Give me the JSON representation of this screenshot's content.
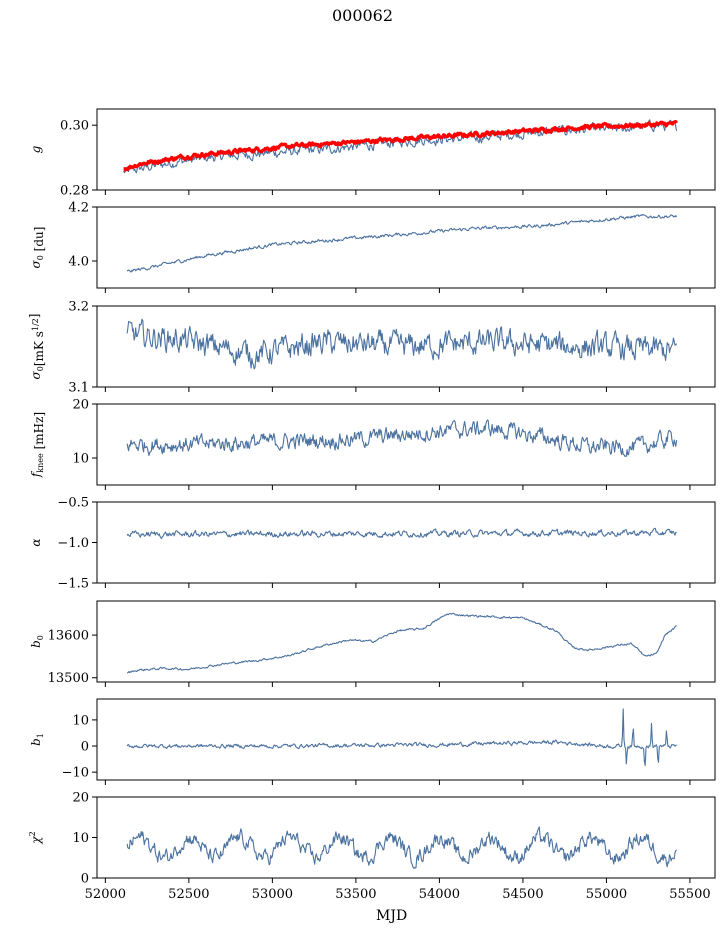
{
  "figure": {
    "title": "000062",
    "xlabel": "MJD",
    "xlim": [
      51950,
      55650
    ],
    "xticks": [
      52000,
      52500,
      53000,
      53500,
      54000,
      54500,
      55000,
      55500
    ],
    "line_color": "#4c72a0",
    "accent_color": "#ff0000"
  },
  "chart_data": [
    {
      "type": "line",
      "ylabel_parts": [
        {
          "t": "g"
        }
      ],
      "ylim": [
        0.28,
        0.305
      ],
      "yticks": [
        0.28,
        0.3
      ],
      "ytick_labels": [
        "0.28",
        "0.30"
      ],
      "series": [
        {
          "color": "#4c72a0",
          "x": [
            52110,
            52200,
            52400,
            52700,
            53000,
            53300,
            53600,
            53900,
            54200,
            54500,
            54800,
            55100,
            55300,
            55420
          ],
          "y": [
            0.2855,
            0.2865,
            0.2885,
            0.2905,
            0.2915,
            0.2925,
            0.294,
            0.2955,
            0.296,
            0.2975,
            0.2985,
            0.299,
            0.3,
            0.2995
          ],
          "noise": 0.0012
        },
        {
          "color": "#ff0000",
          "x": [
            52110,
            52200,
            52500,
            52800,
            53100,
            53400,
            53700,
            54000,
            54300,
            54600,
            54900,
            55200,
            55420
          ],
          "y": [
            0.2865,
            0.288,
            0.2905,
            0.292,
            0.2935,
            0.2945,
            0.2955,
            0.2965,
            0.2975,
            0.2985,
            0.2995,
            0.3,
            0.3005
          ],
          "noise": 0.0005,
          "thick": true
        }
      ]
    },
    {
      "type": "line",
      "ylabel_parts": [
        {
          "t": "σ"
        },
        {
          "t": "0",
          "sub": true
        },
        {
          "t": " [du]"
        }
      ],
      "ylim": [
        3.9,
        4.2
      ],
      "yticks": [
        4.0,
        4.2
      ],
      "ytick_labels": [
        "4.0",
        "4.2"
      ],
      "series": [
        {
          "color": "#4c72a0",
          "x": [
            52130,
            52300,
            52600,
            53000,
            53400,
            53800,
            54200,
            54600,
            55000,
            55200,
            55420
          ],
          "y": [
            3.96,
            3.98,
            4.02,
            4.06,
            4.08,
            4.1,
            4.12,
            4.13,
            4.155,
            4.165,
            4.165
          ],
          "noise": 0.005
        }
      ]
    },
    {
      "type": "line",
      "ylabel_parts": [
        {
          "t": "σ"
        },
        {
          "t": "0",
          "sub": true
        },
        {
          "t": "[mK s"
        },
        {
          "t": "1/2",
          "sup": true
        },
        {
          "t": "]"
        }
      ],
      "ylim": [
        3.1,
        3.2
      ],
      "yticks": [
        3.1,
        3.2
      ],
      "ytick_labels": [
        "3.1",
        "3.2"
      ],
      "series": [
        {
          "color": "#4c72a0",
          "x": [
            52130,
            52400,
            52900,
            53300,
            53800,
            54300,
            54800,
            55420
          ],
          "y": [
            3.165,
            3.16,
            3.14,
            3.155,
            3.15,
            3.155,
            3.15,
            3.145
          ],
          "noise": 0.012
        }
      ]
    },
    {
      "type": "line",
      "ylabel_parts": [
        {
          "t": "f"
        },
        {
          "t": "knee",
          "sub": true
        },
        {
          "t": " [mHz]"
        }
      ],
      "ylim": [
        5,
        20
      ],
      "yticks": [
        10,
        20
      ],
      "ytick_labels": [
        "10",
        "20"
      ],
      "series": [
        {
          "color": "#4c72a0",
          "x": [
            52130,
            52500,
            53000,
            53500,
            54000,
            54300,
            54600,
            54900,
            55200,
            55420
          ],
          "y": [
            12.5,
            12.5,
            13,
            13.5,
            15,
            15.5,
            14,
            12,
            12,
            14
          ],
          "noise": 1.2
        }
      ]
    },
    {
      "type": "line",
      "ylabel_parts": [
        {
          "t": "α"
        }
      ],
      "ylim": [
        -1.5,
        -0.5
      ],
      "yticks": [
        -1.5,
        -1.0,
        -0.5
      ],
      "ytick_labels": [
        "−1.5",
        "−1.0",
        "−0.5"
      ],
      "series": [
        {
          "color": "#4c72a0",
          "x": [
            52130,
            55420
          ],
          "y": [
            -0.9,
            -0.88
          ],
          "noise": 0.03
        }
      ]
    },
    {
      "type": "line",
      "ylabel_parts": [
        {
          "t": "b"
        },
        {
          "t": "0",
          "sub": true
        }
      ],
      "ylim": [
        13490,
        13680
      ],
      "yticks": [
        13500,
        13600
      ],
      "ytick_labels": [
        "13500",
        "13600"
      ],
      "series": [
        {
          "color": "#4c72a0",
          "x": [
            52130,
            52200,
            52350,
            52500,
            52700,
            52900,
            53100,
            53300,
            53450,
            53600,
            53750,
            53900,
            54050,
            54200,
            54500,
            54700,
            54800,
            54900,
            55050,
            55150,
            55230,
            55300,
            55350,
            55420
          ],
          "y": [
            13512,
            13518,
            13522,
            13520,
            13532,
            13540,
            13552,
            13575,
            13588,
            13585,
            13610,
            13615,
            13650,
            13645,
            13640,
            13610,
            13570,
            13565,
            13575,
            13580,
            13550,
            13555,
            13600,
            13620
          ],
          "noise": 2
        }
      ]
    },
    {
      "type": "line",
      "ylabel_parts": [
        {
          "t": "b"
        },
        {
          "t": "1",
          "sub": true
        }
      ],
      "ylim": [
        -13,
        18
      ],
      "yticks": [
        -10,
        0,
        10
      ],
      "ytick_labels": [
        "−10",
        "0",
        "10"
      ],
      "series": [
        {
          "color": "#4c72a0",
          "x": [
            52130,
            53000,
            54000,
            54700,
            55000,
            55420
          ],
          "y": [
            0,
            0,
            0.5,
            1.5,
            0,
            0
          ],
          "noise": 0.6,
          "spikes": [
            [
              55100,
              15
            ],
            [
              55120,
              -7
            ],
            [
              55160,
              8
            ],
            [
              55230,
              -10
            ],
            [
              55270,
              9
            ],
            [
              55310,
              -9
            ],
            [
              55360,
              6
            ]
          ]
        }
      ]
    },
    {
      "type": "line",
      "ylabel_parts": [
        {
          "t": "χ"
        },
        {
          "t": "2",
          "sup": true
        }
      ],
      "ylim": [
        0,
        20
      ],
      "yticks": [
        0,
        10,
        20
      ],
      "ytick_labels": [
        "0",
        "10",
        "20"
      ],
      "series": [
        {
          "color": "#4c72a0",
          "x": [
            52130,
            55420
          ],
          "y": [
            7.5,
            7.5
          ],
          "noise": 1.5,
          "wave": [
            2.5,
            300
          ]
        }
      ]
    }
  ]
}
